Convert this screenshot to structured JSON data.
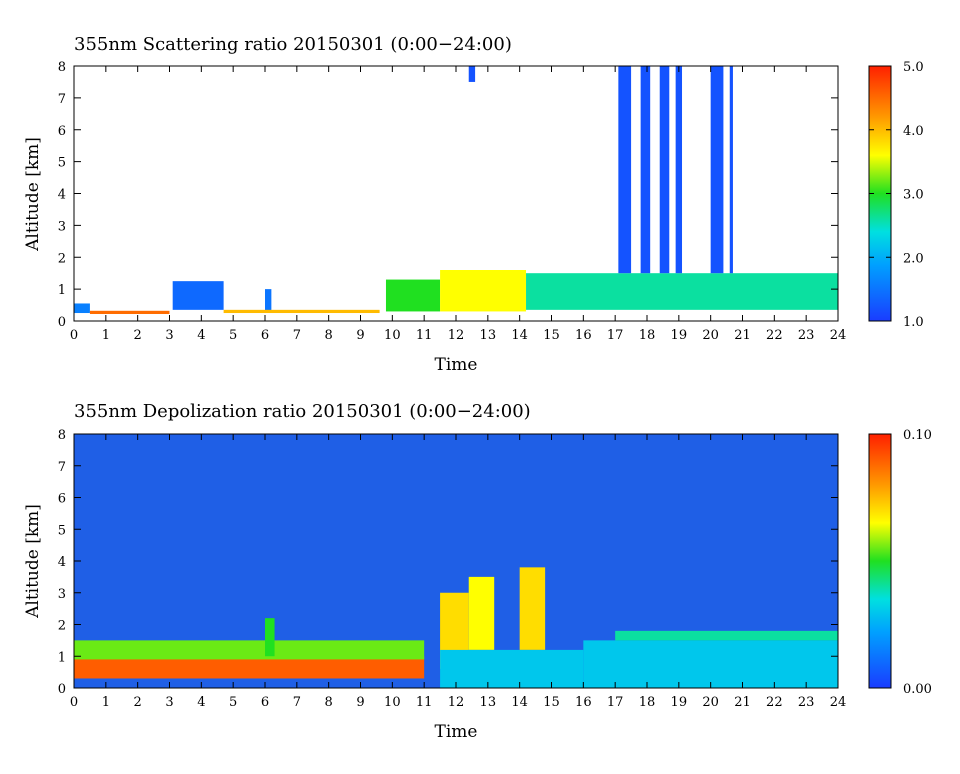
{
  "chart_data": [
    {
      "type": "heatmap",
      "title": "355nm Scattering ratio  20150301 (0:00−24:00)",
      "xlabel": "Time",
      "ylabel": "Altitude [km]",
      "xlim": [
        0,
        24
      ],
      "ylim": [
        0,
        8
      ],
      "x_ticks": [
        "0",
        "1",
        "2",
        "3",
        "4",
        "5",
        "6",
        "7",
        "8",
        "9",
        "10",
        "11",
        "12",
        "13",
        "14",
        "15",
        "16",
        "17",
        "18",
        "19",
        "20",
        "21",
        "22",
        "23",
        "24"
      ],
      "y_ticks": [
        "0",
        "1",
        "2",
        "3",
        "4",
        "5",
        "6",
        "7",
        "8"
      ],
      "colorbar": {
        "range": [
          1.0,
          5.0
        ],
        "ticks": [
          "1.0",
          "2.0",
          "3.0",
          "4.0",
          "5.0"
        ]
      },
      "features": [
        {
          "t0": 0.0,
          "t1": 0.5,
          "h0": 0.25,
          "h1": 0.55,
          "v": 1.6
        },
        {
          "t0": 0.5,
          "t1": 3.0,
          "h0": 0.22,
          "h1": 0.32,
          "v": 4.5
        },
        {
          "t0": 3.1,
          "t1": 4.7,
          "h0": 0.35,
          "h1": 1.25,
          "v": 1.4
        },
        {
          "t0": 6.0,
          "t1": 6.2,
          "h0": 0.3,
          "h1": 1.0,
          "v": 1.5
        },
        {
          "t0": 4.7,
          "t1": 9.6,
          "h0": 0.25,
          "h1": 0.35,
          "v": 4.0
        },
        {
          "t0": 9.8,
          "t1": 11.5,
          "h0": 0.3,
          "h1": 1.3,
          "v": 3.0
        },
        {
          "t0": 11.5,
          "t1": 14.2,
          "h0": 0.3,
          "h1": 1.6,
          "v": 3.6
        },
        {
          "t0": 12.4,
          "t1": 12.6,
          "h0": 7.5,
          "h1": 8.0,
          "v": 1.2
        },
        {
          "t0": 14.2,
          "t1": 24.0,
          "h0": 0.35,
          "h1": 1.5,
          "v": 2.6
        },
        {
          "t0": 17.1,
          "t1": 17.5,
          "h0": 1.5,
          "h1": 8.0,
          "v": 1.2
        },
        {
          "t0": 17.8,
          "t1": 18.1,
          "h0": 1.5,
          "h1": 8.0,
          "v": 1.2
        },
        {
          "t0": 18.4,
          "t1": 18.7,
          "h0": 1.5,
          "h1": 8.0,
          "v": 1.2
        },
        {
          "t0": 18.9,
          "t1": 19.1,
          "h0": 1.5,
          "h1": 8.0,
          "v": 1.2
        },
        {
          "t0": 20.0,
          "t1": 20.4,
          "h0": 1.5,
          "h1": 8.0,
          "v": 1.2
        },
        {
          "t0": 20.6,
          "t1": 20.7,
          "h0": 1.5,
          "h1": 8.0,
          "v": 1.2
        }
      ]
    },
    {
      "type": "heatmap",
      "title": "355nm Depolization ratio  20150301 (0:00−24:00)",
      "xlabel": "Time",
      "ylabel": "Altitude [km]",
      "xlim": [
        0,
        24
      ],
      "ylim": [
        0,
        8
      ],
      "x_ticks": [
        "0",
        "1",
        "2",
        "3",
        "4",
        "5",
        "6",
        "7",
        "8",
        "9",
        "10",
        "11",
        "12",
        "13",
        "14",
        "15",
        "16",
        "17",
        "18",
        "19",
        "20",
        "21",
        "22",
        "23",
        "24"
      ],
      "y_ticks": [
        "0",
        "1",
        "2",
        "3",
        "4",
        "5",
        "6",
        "7",
        "8"
      ],
      "colorbar": {
        "range": [
          0.0,
          0.1
        ],
        "ticks": [
          "0.00",
          "0.10"
        ]
      },
      "background_value": 0.015,
      "features": [
        {
          "t0": 0.0,
          "t1": 11.0,
          "h0": 0.3,
          "h1": 1.0,
          "v": 0.09
        },
        {
          "t0": 0.0,
          "t1": 11.0,
          "h0": 0.9,
          "h1": 1.5,
          "v": 0.055
        },
        {
          "t0": 6.0,
          "t1": 6.3,
          "h0": 1.0,
          "h1": 2.2,
          "v": 0.05
        },
        {
          "t0": 11.5,
          "t1": 12.4,
          "h0": 0.6,
          "h1": 3.0,
          "v": 0.07
        },
        {
          "t0": 12.4,
          "t1": 13.2,
          "h0": 1.2,
          "h1": 3.5,
          "v": 0.065
        },
        {
          "t0": 14.0,
          "t1": 14.8,
          "h0": 1.2,
          "h1": 3.8,
          "v": 0.07
        },
        {
          "t0": 11.5,
          "t1": 16.0,
          "h0": 0.0,
          "h1": 1.2,
          "v": 0.03
        },
        {
          "t0": 16.0,
          "t1": 24.0,
          "h0": 0.0,
          "h1": 1.5,
          "v": 0.03
        },
        {
          "t0": 17.0,
          "t1": 24.0,
          "h0": 1.5,
          "h1": 1.8,
          "v": 0.04
        }
      ]
    }
  ]
}
